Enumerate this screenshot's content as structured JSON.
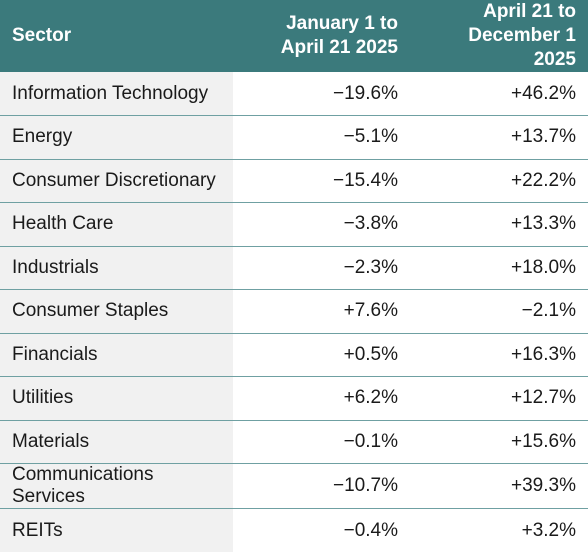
{
  "header": {
    "sector": "Sector",
    "col1_line1": "January 1 to",
    "col1_line2": "April 21 2025",
    "col2_line1": "April 21 to",
    "col2_line2": "December 1 2025"
  },
  "rows": [
    {
      "sector": "Information Technology",
      "p1": "−19.6%",
      "p2": "+46.2%"
    },
    {
      "sector": "Energy",
      "p1": "−5.1%",
      "p2": "+13.7%"
    },
    {
      "sector": "Consumer Discretionary",
      "p1": "−15.4%",
      "p2": "+22.2%"
    },
    {
      "sector": "Health Care",
      "p1": "−3.8%",
      "p2": "+13.3%"
    },
    {
      "sector": "Industrials",
      "p1": "−2.3%",
      "p2": "+18.0%"
    },
    {
      "sector": "Consumer Staples",
      "p1": "+7.6%",
      "p2": "−2.1%"
    },
    {
      "sector": "Financials",
      "p1": "+0.5%",
      "p2": "+16.3%"
    },
    {
      "sector": "Utilities",
      "p1": "+6.2%",
      "p2": "+12.7%"
    },
    {
      "sector": "Materials",
      "p1": "−0.1%",
      "p2": "+15.6%"
    },
    {
      "sector": "Communications Services",
      "p1": "−10.7%",
      "p2": "+39.3%"
    },
    {
      "sector": "REITs",
      "p1": "−0.4%",
      "p2": "+3.2%"
    }
  ]
}
